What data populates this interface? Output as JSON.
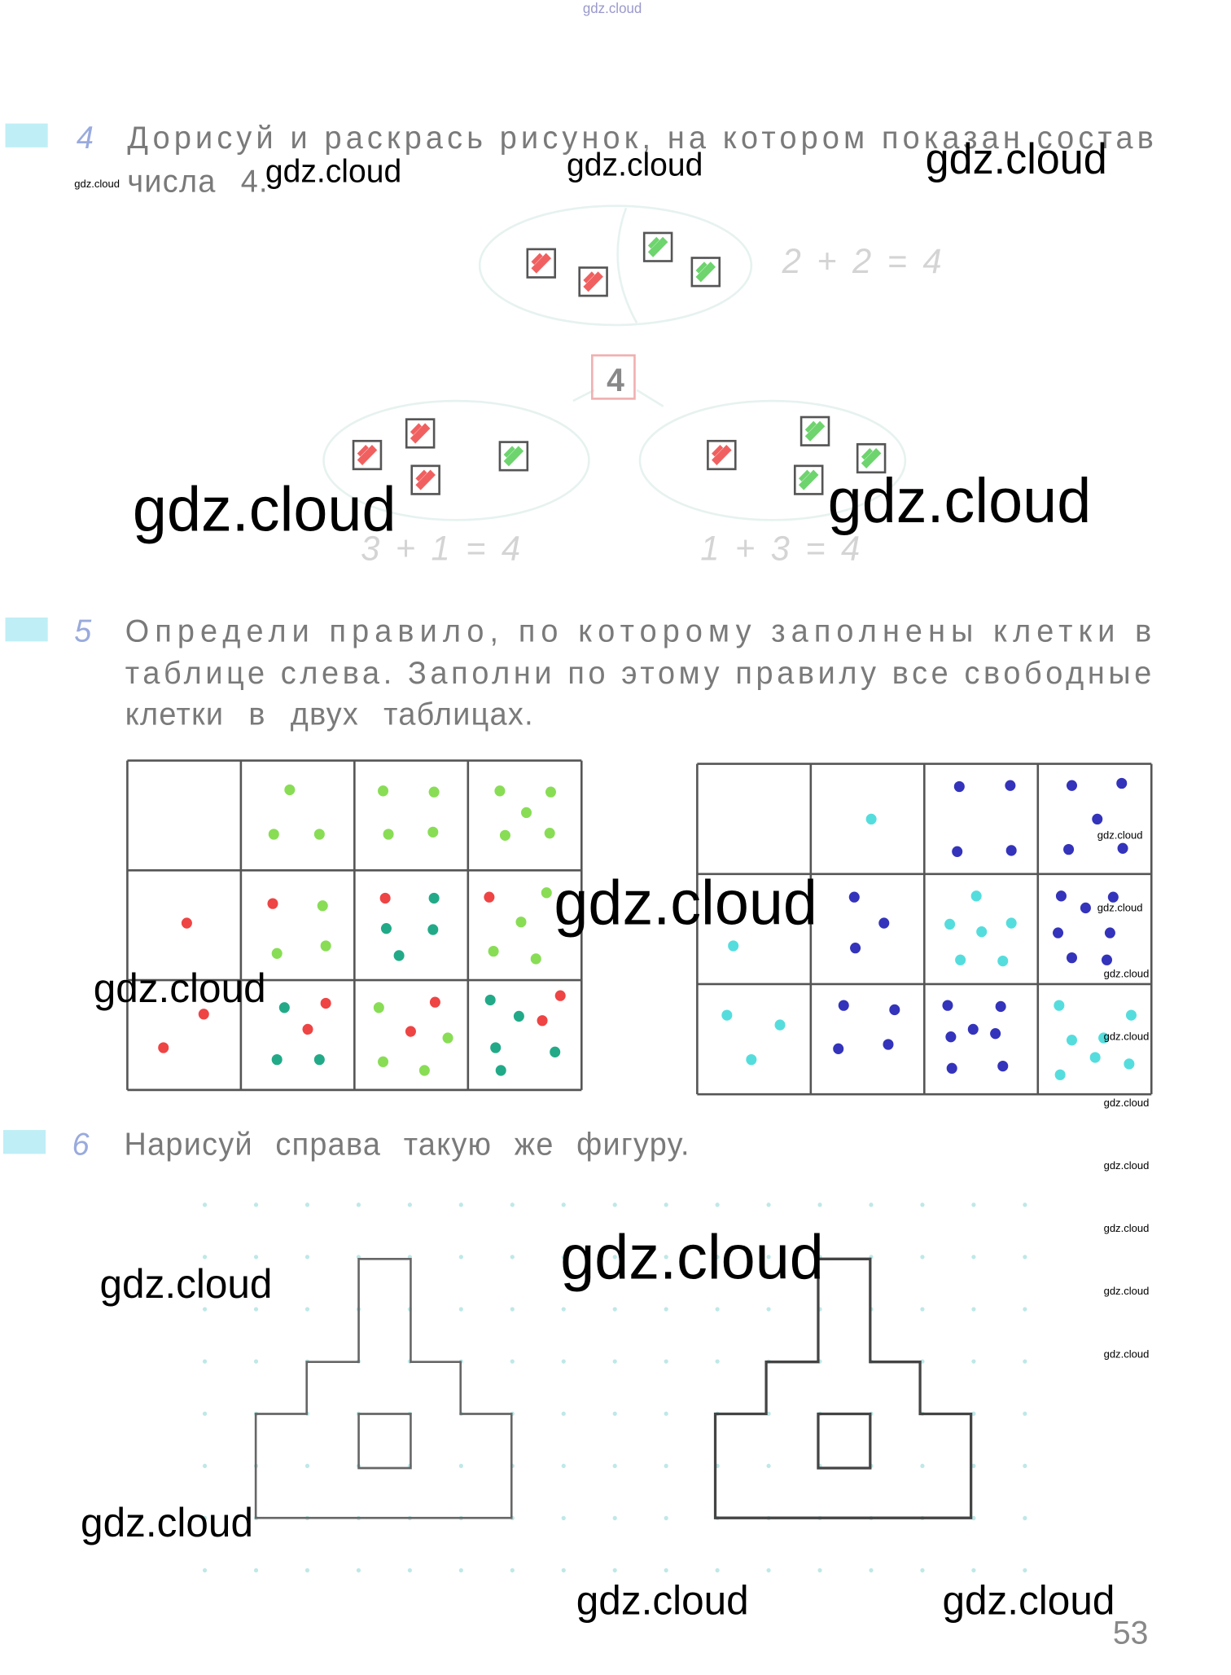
{
  "header": {
    "watermark": "gdz.cloud"
  },
  "task4": {
    "number": "4",
    "lines": [
      "Дорисуй и раскрась рисунок, на котором показан состав",
      "числа 4."
    ],
    "box": "4",
    "equations": [
      "2 + 2 = 4",
      "3 + 1 = 4",
      "1 + 3 = 4"
    ]
  },
  "task5": {
    "number": "5",
    "lines": [
      "Определи правило, по которому заполнены клетки в",
      "таблице слева. Заполни по этому правилу все свободные",
      "клетки в двух таблицах."
    ]
  },
  "task6": {
    "number": "6",
    "lines": [
      "Нарисуй справа такую же фигуру."
    ]
  },
  "page_number": "53",
  "watermarks": [
    "gdz.cloud",
    "gdz.cloud",
    "gdz.cloud",
    "gdz.cloud",
    "gdz.cloud",
    "gdz.cloud",
    "gdz.cloud",
    "gdz.cloud",
    "gdz.cloud",
    "gdz.cloud",
    "gdz.cloud",
    "gdz.cloud",
    "gdz.cloud",
    "gdz.cloud",
    "gdz.cloud",
    "gdz.cloud",
    "gdz.cloud",
    "gdz.cloud",
    "gdz.cloud",
    "gdz.cloud",
    "gdz.cloud",
    "gdz.cloud",
    "gdz.cloud"
  ]
}
